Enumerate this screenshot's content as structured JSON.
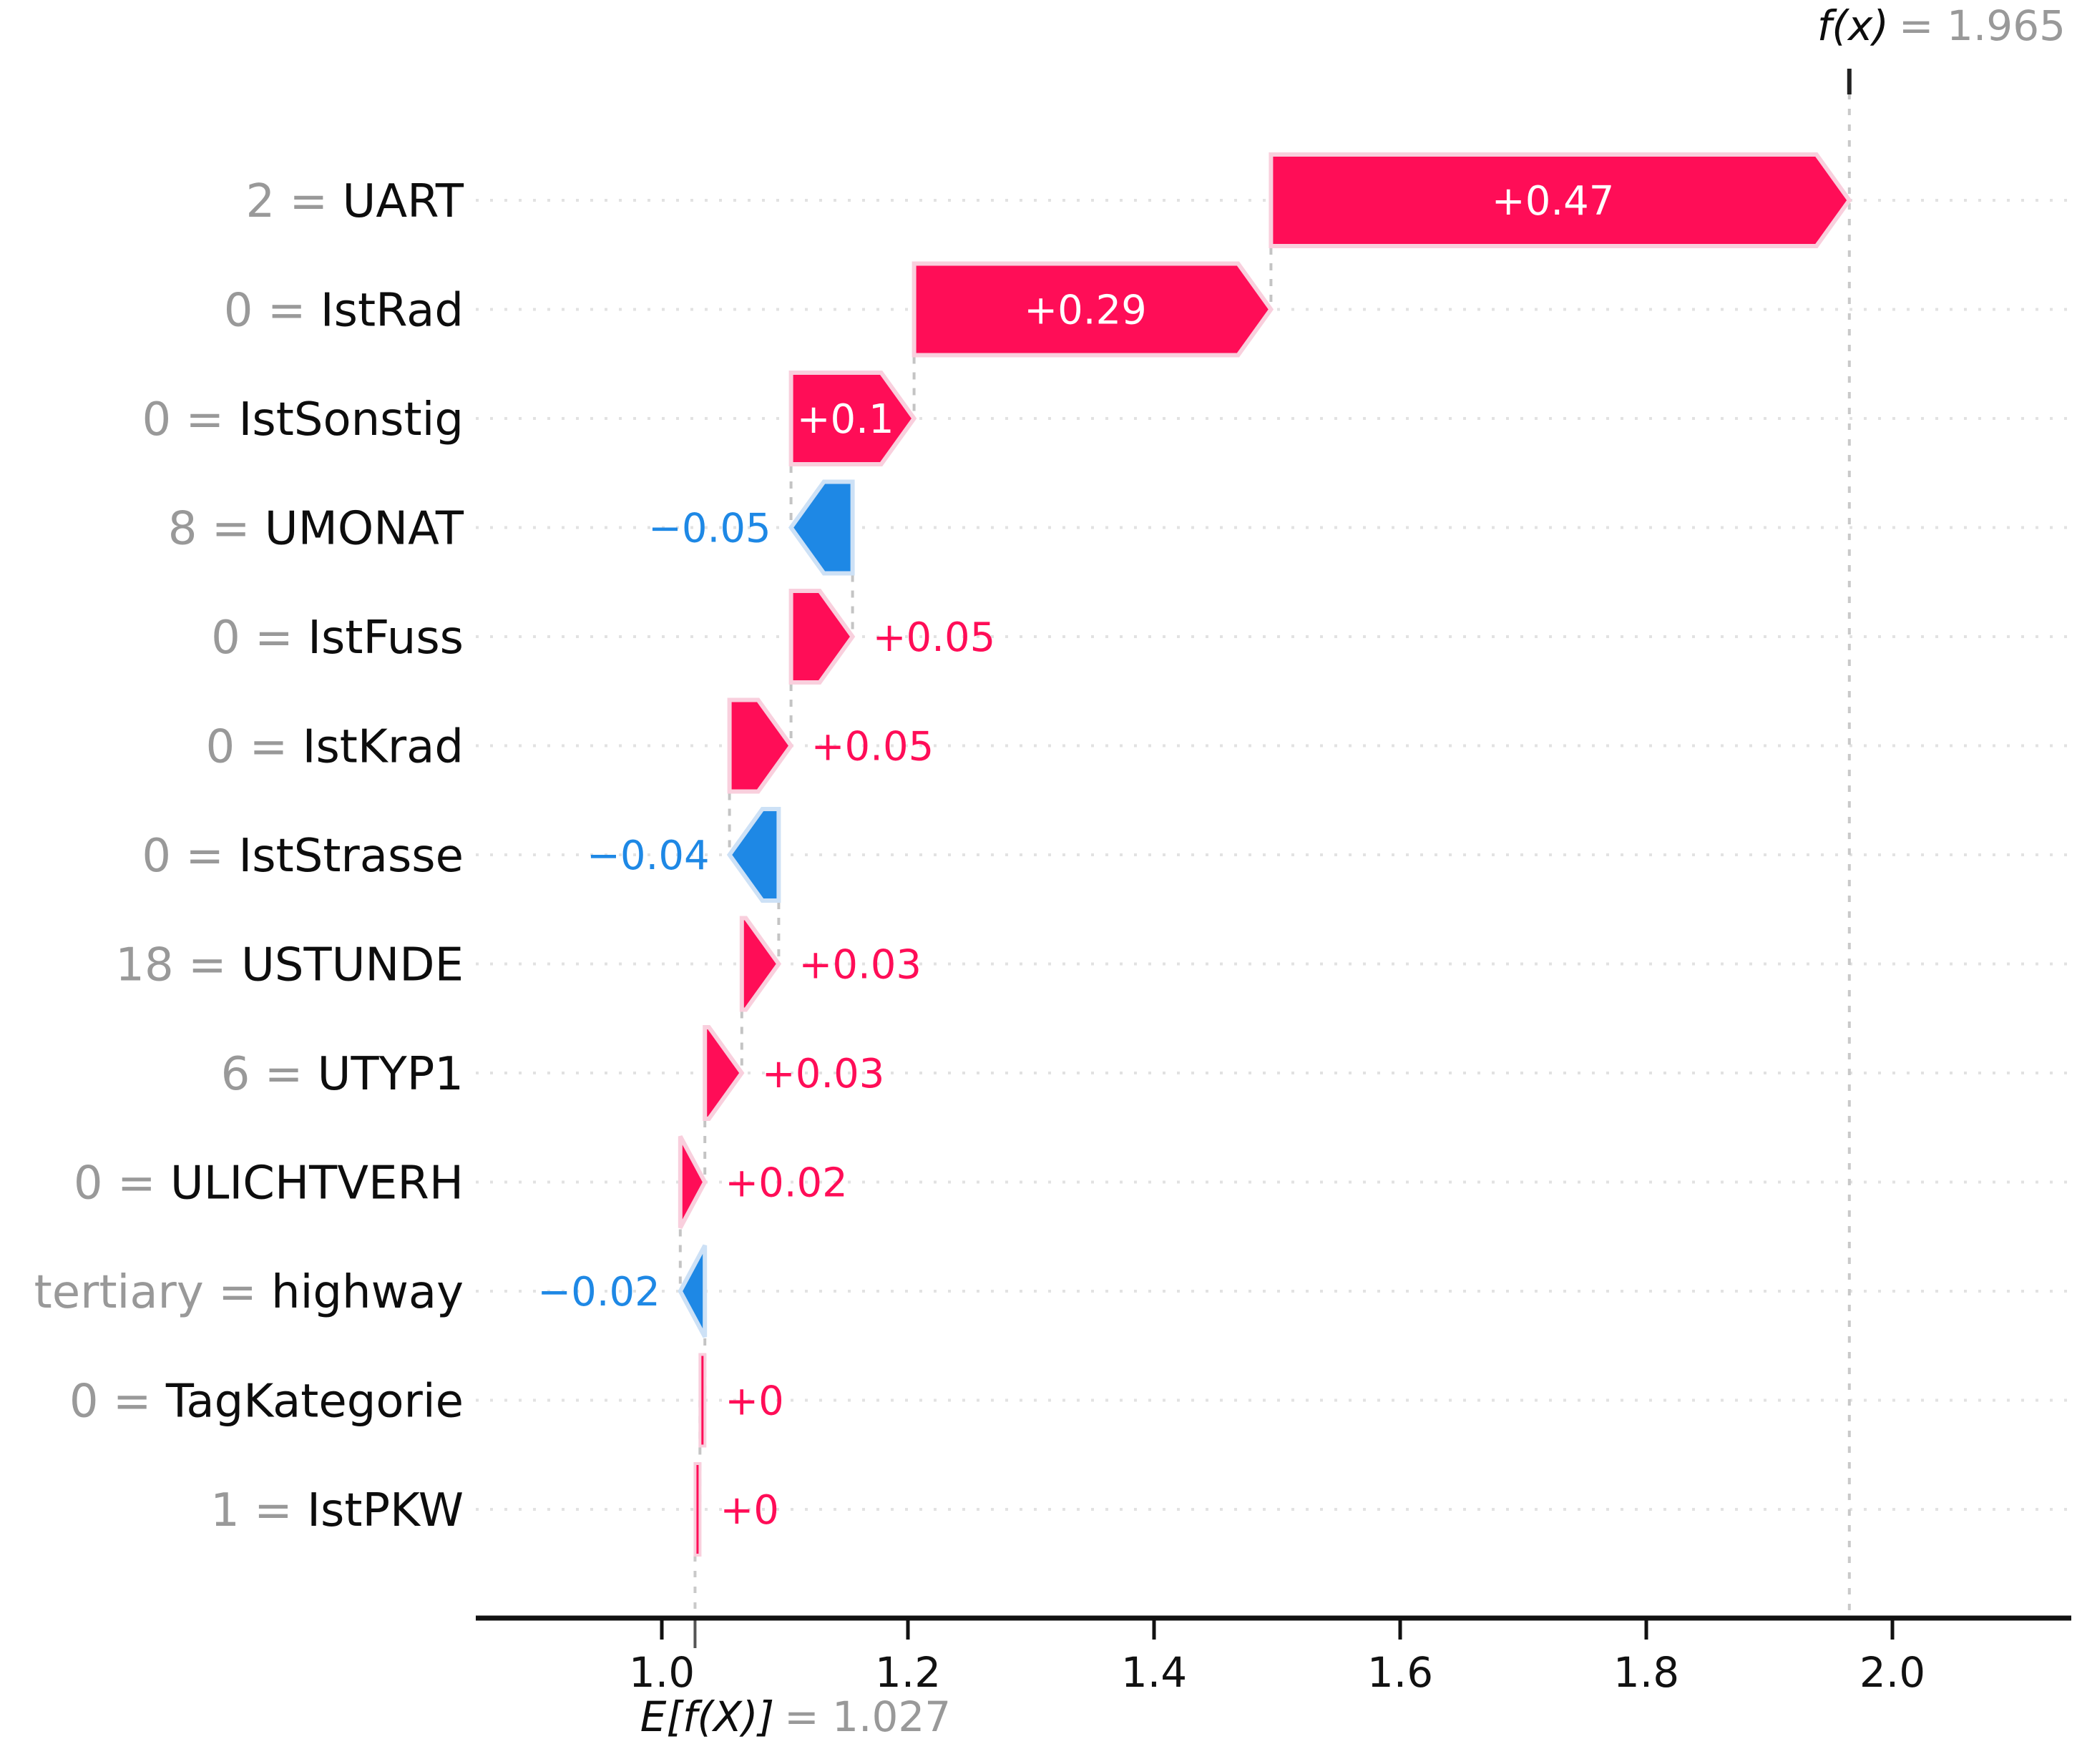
{
  "annotations": {
    "fx_func": "f(x)",
    "fx_value": "= 1.965",
    "efx_func": "E[f(X)]",
    "efx_value": "= 1.027"
  },
  "chart_data": {
    "type": "bar",
    "subtype": "shap-waterfall",
    "title": "",
    "xlabel": "",
    "ylabel": "",
    "prediction_fx": 1.965,
    "base_value_efx": 1.027,
    "x_axis": {
      "tick_values": [
        1.0,
        1.2,
        1.4,
        1.6,
        1.8,
        2.0
      ],
      "tick_labels": [
        "1.0",
        "1.2",
        "1.4",
        "1.6",
        "1.8",
        "2.0"
      ],
      "range": [
        0.85,
        2.13
      ],
      "grid": "dotted-row-lines"
    },
    "legend": "none",
    "colors": {
      "positive": "#ff0d57",
      "positive_light": "#f9cfdd",
      "negative": "#1e88e5",
      "negative_light": "#cde1f6",
      "value_gray": "#999999",
      "feature_text": "#0d0d0d",
      "grid_dotted": "#e2e2e2",
      "connector_dashed": "#c4c4c4",
      "axis": "#111111"
    },
    "rows": [
      {
        "value": "2",
        "feature": "UART",
        "label": "+0.47",
        "shap": 0.47,
        "start": 1.495,
        "end": 1.965,
        "label_pos": "inside"
      },
      {
        "value": "0",
        "feature": "IstRad",
        "label": "+0.29",
        "shap": 0.29,
        "start": 1.205,
        "end": 1.495,
        "label_pos": "inside"
      },
      {
        "value": "0",
        "feature": "IstSonstig",
        "label": "+0.1",
        "shap": 0.1,
        "start": 1.105,
        "end": 1.205,
        "label_pos": "inside"
      },
      {
        "value": "8",
        "feature": "UMONAT",
        "label": "−0.05",
        "shap": -0.05,
        "start": 1.105,
        "end": 1.155,
        "label_pos": "left"
      },
      {
        "value": "0",
        "feature": "IstFuss",
        "label": "+0.05",
        "shap": 0.05,
        "start": 1.105,
        "end": 1.155,
        "label_pos": "right"
      },
      {
        "value": "0",
        "feature": "IstKrad",
        "label": "+0.05",
        "shap": 0.05,
        "start": 1.055,
        "end": 1.105,
        "label_pos": "right"
      },
      {
        "value": "0",
        "feature": "IstStrasse",
        "label": "−0.04",
        "shap": -0.04,
        "start": 1.055,
        "end": 1.095,
        "label_pos": "left"
      },
      {
        "value": "18",
        "feature": "USTUNDE",
        "label": "+0.03",
        "shap": 0.03,
        "start": 1.065,
        "end": 1.095,
        "label_pos": "right"
      },
      {
        "value": "6",
        "feature": "UTYP1",
        "label": "+0.03",
        "shap": 0.03,
        "start": 1.035,
        "end": 1.065,
        "label_pos": "right"
      },
      {
        "value": "0",
        "feature": "ULICHTVERH",
        "label": "+0.02",
        "shap": 0.02,
        "start": 1.015,
        "end": 1.035,
        "label_pos": "right"
      },
      {
        "value": "tertiary",
        "feature": "highway",
        "label": "−0.02",
        "shap": -0.02,
        "start": 1.015,
        "end": 1.035,
        "label_pos": "left"
      },
      {
        "value": "0",
        "feature": "TagKategorie",
        "label": "+0",
        "shap": 0.004,
        "start": 1.031,
        "end": 1.035,
        "label_pos": "right"
      },
      {
        "value": "1",
        "feature": "IstPKW",
        "label": "+0",
        "shap": 0.004,
        "start": 1.027,
        "end": 1.031,
        "label_pos": "right"
      }
    ]
  }
}
